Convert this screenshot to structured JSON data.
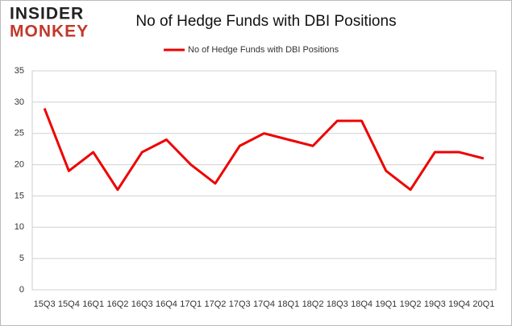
{
  "logo": {
    "line1": "INSIDER",
    "line2": "MONKEY"
  },
  "chart_data": {
    "type": "line",
    "title": "No of Hedge Funds with DBI Positions",
    "categories": [
      "15Q3",
      "15Q4",
      "16Q1",
      "16Q2",
      "16Q3",
      "16Q4",
      "17Q1",
      "17Q2",
      "17Q3",
      "17Q4",
      "18Q1",
      "18Q2",
      "18Q3",
      "18Q4",
      "19Q1",
      "19Q2",
      "19Q3",
      "19Q4",
      "20Q1"
    ],
    "series": [
      {
        "name": "No of Hedge Funds with DBI Positions",
        "color": "#ee0000",
        "values": [
          29,
          19,
          22,
          16,
          22,
          24,
          20,
          17,
          23,
          25,
          24,
          23,
          27,
          27,
          19,
          16,
          22,
          22,
          21
        ]
      }
    ],
    "ylim": [
      0,
      35
    ],
    "yticks": [
      0,
      5,
      10,
      15,
      20,
      25,
      30,
      35
    ],
    "grid": true,
    "legend": "top"
  }
}
